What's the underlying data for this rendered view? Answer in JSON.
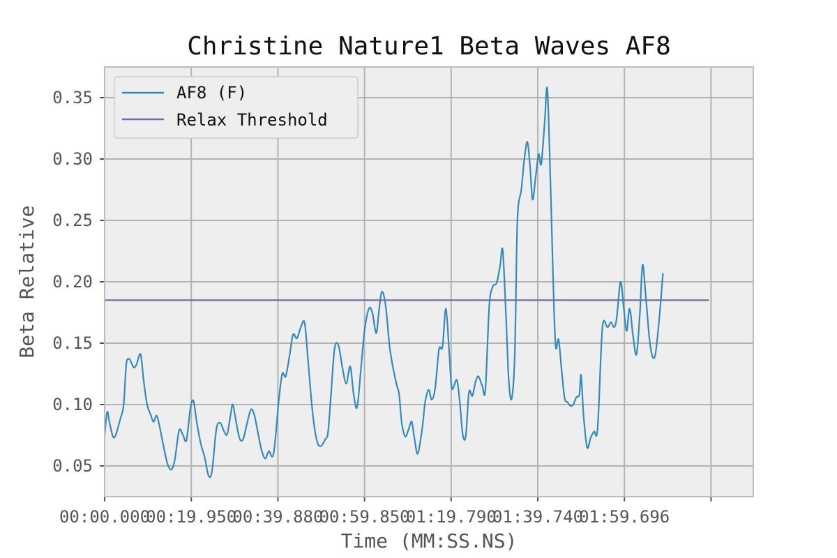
{
  "chart_data": {
    "type": "line",
    "title": "Christine Nature1 Beta Waves AF8",
    "xlabel": "Time (MM:SS.NS)",
    "ylabel": "Beta Relative",
    "xlim": [
      0,
      150
    ],
    "ylim": [
      0.025,
      0.375
    ],
    "x_ticks": [
      {
        "value": 0,
        "label": "00:00.000"
      },
      {
        "value": 20,
        "label": "00:19.950"
      },
      {
        "value": 40,
        "label": "00:39.880"
      },
      {
        "value": 60,
        "label": "00:59.850"
      },
      {
        "value": 80,
        "label": "01:19.790"
      },
      {
        "value": 100,
        "label": "01:39.740"
      },
      {
        "value": 120,
        "label": "01:59.696"
      },
      {
        "value": 140,
        "label": ""
      }
    ],
    "y_ticks": [
      {
        "value": 0.05,
        "label": "0.05"
      },
      {
        "value": 0.1,
        "label": "0.10"
      },
      {
        "value": 0.15,
        "label": "0.15"
      },
      {
        "value": 0.2,
        "label": "0.20"
      },
      {
        "value": 0.25,
        "label": "0.25"
      },
      {
        "value": 0.3,
        "label": "0.30"
      },
      {
        "value": 0.35,
        "label": "0.35"
      }
    ],
    "grid": true,
    "legend_position": "top-left",
    "colors": {
      "plot_background": "#eeeeee",
      "grid": "#b2b2b2",
      "af8": "#348abd",
      "threshold": "#7a68a6"
    },
    "series": [
      {
        "name": "AF8 (F)",
        "color": "#348abd",
        "points": [
          [
            0.0,
            0.075
          ],
          [
            0.6,
            0.094
          ],
          [
            1.2,
            0.084
          ],
          [
            2.2,
            0.073
          ],
          [
            3.6,
            0.088
          ],
          [
            4.4,
            0.1
          ],
          [
            5.0,
            0.133
          ],
          [
            5.7,
            0.137
          ],
          [
            6.3,
            0.133
          ],
          [
            6.8,
            0.13
          ],
          [
            7.4,
            0.133
          ],
          [
            8.3,
            0.141
          ],
          [
            9.0,
            0.12
          ],
          [
            9.8,
            0.1
          ],
          [
            10.6,
            0.092
          ],
          [
            11.3,
            0.086
          ],
          [
            12.0,
            0.091
          ],
          [
            12.7,
            0.082
          ],
          [
            13.6,
            0.066
          ],
          [
            14.5,
            0.052
          ],
          [
            15.4,
            0.047
          ],
          [
            16.2,
            0.055
          ],
          [
            17.2,
            0.079
          ],
          [
            18.1,
            0.075
          ],
          [
            18.9,
            0.071
          ],
          [
            19.8,
            0.097
          ],
          [
            20.5,
            0.103
          ],
          [
            21.2,
            0.087
          ],
          [
            22.2,
            0.068
          ],
          [
            23.1,
            0.057
          ],
          [
            24.0,
            0.042
          ],
          [
            24.8,
            0.046
          ],
          [
            25.8,
            0.08
          ],
          [
            26.7,
            0.085
          ],
          [
            27.6,
            0.078
          ],
          [
            28.3,
            0.076
          ],
          [
            29.1,
            0.092
          ],
          [
            29.6,
            0.1
          ],
          [
            30.4,
            0.085
          ],
          [
            31.2,
            0.072
          ],
          [
            32.0,
            0.072
          ],
          [
            32.9,
            0.085
          ],
          [
            33.8,
            0.096
          ],
          [
            34.6,
            0.091
          ],
          [
            35.5,
            0.075
          ],
          [
            36.3,
            0.062
          ],
          [
            37.1,
            0.056
          ],
          [
            37.9,
            0.062
          ],
          [
            39.0,
            0.06
          ],
          [
            40.2,
            0.103
          ],
          [
            41.0,
            0.125
          ],
          [
            41.8,
            0.123
          ],
          [
            42.7,
            0.14
          ],
          [
            43.5,
            0.157
          ],
          [
            44.4,
            0.154
          ],
          [
            45.3,
            0.163
          ],
          [
            46.2,
            0.166
          ],
          [
            47.1,
            0.13
          ],
          [
            48.0,
            0.094
          ],
          [
            48.9,
            0.072
          ],
          [
            49.8,
            0.066
          ],
          [
            51.0,
            0.072
          ],
          [
            51.6,
            0.078
          ],
          [
            52.3,
            0.11
          ],
          [
            53.1,
            0.146
          ],
          [
            54.0,
            0.148
          ],
          [
            54.9,
            0.13
          ],
          [
            55.8,
            0.117
          ],
          [
            56.7,
            0.131
          ],
          [
            57.5,
            0.108
          ],
          [
            58.3,
            0.098
          ],
          [
            59.2,
            0.13
          ],
          [
            60.0,
            0.16
          ],
          [
            61.0,
            0.178
          ],
          [
            61.8,
            0.175
          ],
          [
            62.7,
            0.158
          ],
          [
            63.3,
            0.175
          ],
          [
            64.0,
            0.192
          ],
          [
            64.9,
            0.18
          ],
          [
            65.8,
            0.147
          ],
          [
            66.7,
            0.128
          ],
          [
            67.5,
            0.115
          ],
          [
            68.0,
            0.108
          ],
          [
            68.6,
            0.085
          ],
          [
            69.4,
            0.074
          ],
          [
            70.2,
            0.08
          ],
          [
            70.9,
            0.086
          ],
          [
            71.5,
            0.073
          ],
          [
            72.3,
            0.06
          ],
          [
            73.3,
            0.08
          ],
          [
            74.0,
            0.102
          ],
          [
            74.8,
            0.112
          ],
          [
            75.5,
            0.104
          ],
          [
            76.3,
            0.113
          ],
          [
            77.2,
            0.145
          ],
          [
            78.0,
            0.147
          ],
          [
            78.8,
            0.178
          ],
          [
            79.6,
            0.14
          ],
          [
            80.2,
            0.113
          ],
          [
            81.3,
            0.12
          ],
          [
            82.0,
            0.102
          ],
          [
            82.7,
            0.075
          ],
          [
            83.4,
            0.075
          ],
          [
            84.1,
            0.11
          ],
          [
            84.9,
            0.107
          ],
          [
            85.6,
            0.118
          ],
          [
            86.3,
            0.123
          ],
          [
            87.2,
            0.115
          ],
          [
            87.9,
            0.112
          ],
          [
            88.8,
            0.18
          ],
          [
            89.6,
            0.196
          ],
          [
            90.5,
            0.199
          ],
          [
            91.3,
            0.213
          ],
          [
            91.9,
            0.226
          ],
          [
            92.6,
            0.178
          ],
          [
            93.3,
            0.12
          ],
          [
            94.0,
            0.105
          ],
          [
            94.7,
            0.142
          ],
          [
            95.3,
            0.25
          ],
          [
            96.2,
            0.275
          ],
          [
            96.9,
            0.3
          ],
          [
            97.6,
            0.314
          ],
          [
            98.2,
            0.295
          ],
          [
            98.8,
            0.267
          ],
          [
            99.5,
            0.285
          ],
          [
            100.2,
            0.304
          ],
          [
            100.8,
            0.296
          ],
          [
            101.6,
            0.33
          ],
          [
            102.2,
            0.357
          ],
          [
            102.9,
            0.285
          ],
          [
            103.5,
            0.208
          ],
          [
            104.1,
            0.148
          ],
          [
            104.8,
            0.153
          ],
          [
            105.5,
            0.128
          ],
          [
            106.2,
            0.105
          ],
          [
            106.9,
            0.102
          ],
          [
            107.5,
            0.099
          ],
          [
            108.2,
            0.1
          ],
          [
            108.9,
            0.106
          ],
          [
            109.6,
            0.108
          ],
          [
            110.0,
            0.124
          ],
          [
            110.6,
            0.09
          ],
          [
            111.4,
            0.065
          ],
          [
            112.2,
            0.073
          ],
          [
            113.0,
            0.078
          ],
          [
            113.8,
            0.08
          ],
          [
            114.7,
            0.15
          ],
          [
            115.2,
            0.168
          ],
          [
            116.1,
            0.163
          ],
          [
            116.9,
            0.167
          ],
          [
            117.6,
            0.163
          ],
          [
            118.2,
            0.17
          ],
          [
            119.1,
            0.2
          ],
          [
            119.8,
            0.18
          ],
          [
            120.5,
            0.16
          ],
          [
            121.2,
            0.178
          ],
          [
            122.0,
            0.156
          ],
          [
            122.8,
            0.141
          ],
          [
            123.6,
            0.176
          ],
          [
            124.2,
            0.214
          ],
          [
            125.0,
            0.185
          ],
          [
            125.8,
            0.153
          ],
          [
            126.5,
            0.139
          ],
          [
            127.2,
            0.142
          ],
          [
            128.1,
            0.172
          ],
          [
            128.9,
            0.207
          ]
        ]
      },
      {
        "name": "Relax Threshold",
        "color": "#7a68a6",
        "points": [
          [
            0.0,
            0.185
          ],
          [
            139.5,
            0.185
          ]
        ]
      }
    ]
  }
}
